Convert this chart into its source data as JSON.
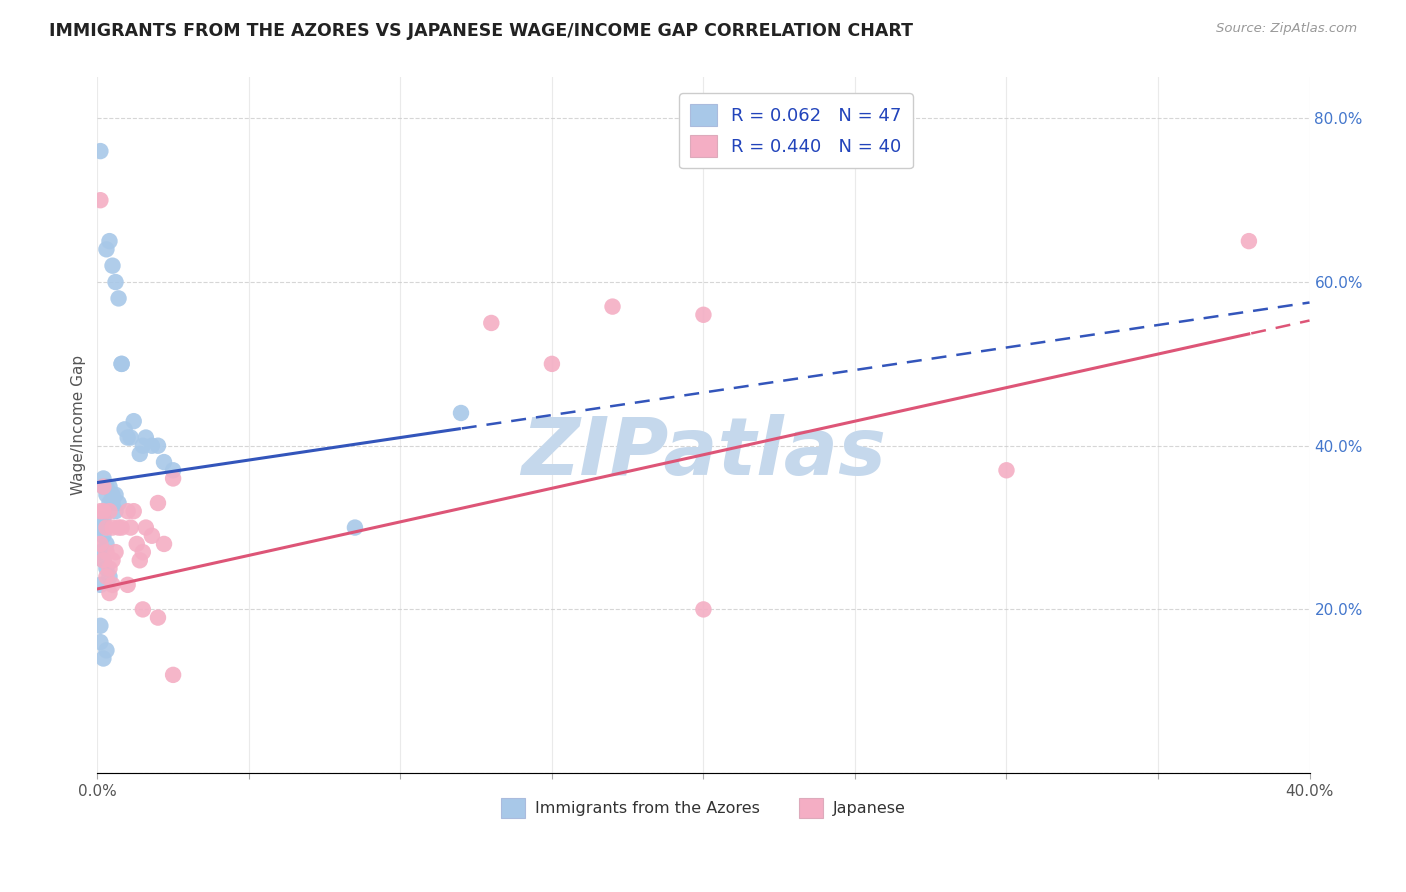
{
  "title": "IMMIGRANTS FROM THE AZORES VS JAPANESE WAGE/INCOME GAP CORRELATION CHART",
  "source": "Source: ZipAtlas.com",
  "ylabel": "Wage/Income Gap",
  "x_min": 0.0,
  "x_max": 0.4,
  "y_min": 0.0,
  "y_max": 0.85,
  "x_ticks": [
    0.0,
    0.05,
    0.1,
    0.15,
    0.2,
    0.25,
    0.3,
    0.35,
    0.4
  ],
  "y_ticks": [
    0.0,
    0.2,
    0.4,
    0.6,
    0.8
  ],
  "y_tick_labels": [
    "",
    "20.0%",
    "40.0%",
    "60.0%",
    "80.0%"
  ],
  "grid_color": "#cccccc",
  "blue_color": "#a8c8e8",
  "pink_color": "#f4aec4",
  "blue_line_color": "#3355bb",
  "pink_line_color": "#dd5577",
  "blue_line_solid_end": 0.12,
  "pink_line_solid_end": 0.38,
  "legend_label1": "R = 0.062   N = 47",
  "legend_label2": "R = 0.440   N = 40",
  "legend_bottom_label1": "Immigrants from the Azores",
  "legend_bottom_label2": "Japanese",
  "blue_intercept": 0.355,
  "blue_slope": 0.55,
  "pink_intercept": 0.225,
  "pink_slope": 0.82,
  "blue_x": [
    0.001,
    0.003,
    0.004,
    0.005,
    0.006,
    0.007,
    0.008,
    0.008,
    0.009,
    0.01,
    0.011,
    0.012,
    0.014,
    0.015,
    0.016,
    0.018,
    0.02,
    0.022,
    0.025,
    0.002,
    0.002,
    0.003,
    0.003,
    0.004,
    0.005,
    0.006,
    0.004,
    0.005,
    0.006,
    0.007,
    0.001,
    0.002,
    0.001,
    0.001,
    0.002,
    0.003,
    0.001,
    0.002,
    0.003,
    0.004,
    0.001,
    0.085,
    0.12,
    0.001,
    0.001,
    0.002,
    0.003
  ],
  "blue_y": [
    0.76,
    0.64,
    0.65,
    0.62,
    0.6,
    0.58,
    0.5,
    0.5,
    0.42,
    0.41,
    0.41,
    0.43,
    0.39,
    0.4,
    0.41,
    0.4,
    0.4,
    0.38,
    0.37,
    0.36,
    0.35,
    0.34,
    0.35,
    0.35,
    0.34,
    0.34,
    0.33,
    0.33,
    0.32,
    0.33,
    0.3,
    0.31,
    0.31,
    0.3,
    0.29,
    0.28,
    0.27,
    0.26,
    0.25,
    0.24,
    0.23,
    0.3,
    0.44,
    0.18,
    0.16,
    0.14,
    0.15
  ],
  "pink_x": [
    0.001,
    0.002,
    0.003,
    0.004,
    0.005,
    0.006,
    0.007,
    0.008,
    0.01,
    0.011,
    0.012,
    0.013,
    0.014,
    0.015,
    0.016,
    0.018,
    0.02,
    0.022,
    0.025,
    0.13,
    0.2,
    0.001,
    0.002,
    0.003,
    0.004,
    0.005,
    0.15,
    0.17,
    0.3,
    0.38,
    0.001,
    0.002,
    0.003,
    0.004,
    0.005,
    0.01,
    0.015,
    0.02,
    0.025,
    0.2
  ],
  "pink_y": [
    0.7,
    0.35,
    0.3,
    0.32,
    0.3,
    0.27,
    0.3,
    0.3,
    0.32,
    0.3,
    0.32,
    0.28,
    0.26,
    0.27,
    0.3,
    0.29,
    0.33,
    0.28,
    0.36,
    0.55,
    0.56,
    0.32,
    0.32,
    0.27,
    0.25,
    0.26,
    0.5,
    0.57,
    0.37,
    0.65,
    0.28,
    0.26,
    0.24,
    0.22,
    0.23,
    0.23,
    0.2,
    0.19,
    0.12,
    0.2
  ],
  "watermark_text": "ZIPatlas",
  "watermark_color": "#c5d8ec",
  "watermark_fontsize": 58,
  "background_color": "#ffffff"
}
